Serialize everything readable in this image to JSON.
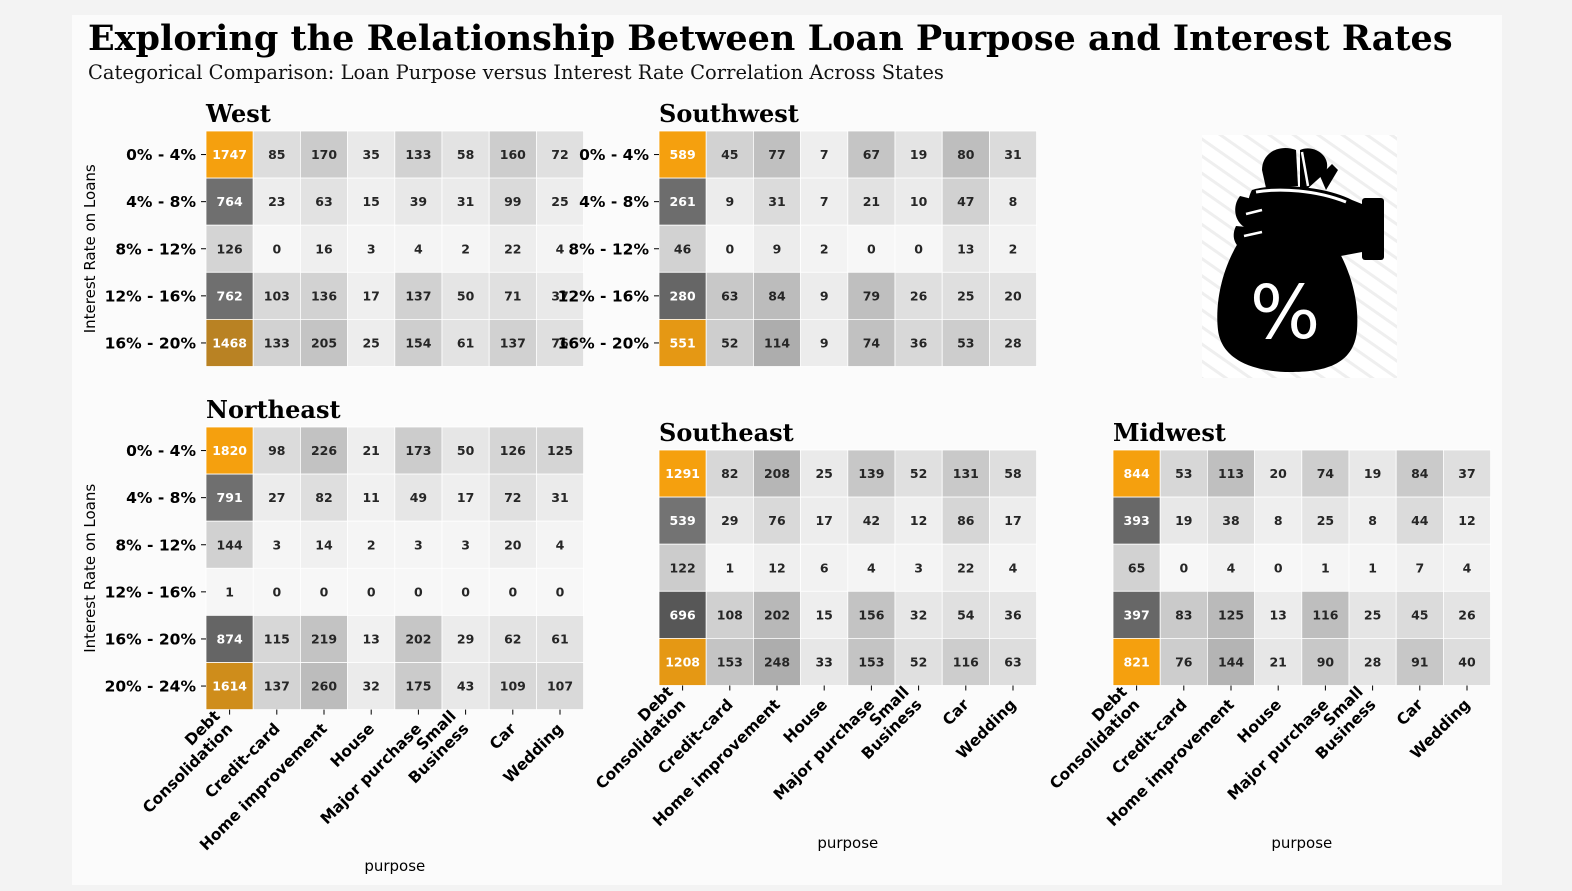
{
  "title": "Exploring the Relationship Between Loan Purpose and Interest Rates",
  "subtitle": "Categorical Comparison: Loan Purpose versus Interest Rate Correlation Across States",
  "colors": {
    "accent": "#f5a00e",
    "dark": "#4a4a4a",
    "light": "#f7f7f7",
    "page": "#f3f3f3",
    "panel": "#fbfbfb"
  },
  "icon": {
    "name": "money-bag-percent-icon",
    "glyph": "%"
  },
  "chart_data": [
    {
      "type": "heatmap",
      "title": "West",
      "ylabel": "Interest Rate on Loans",
      "xlabel": "",
      "categories": [
        "Debt\nConsolidation",
        "Credit-card",
        "Home improvement",
        "House",
        "Major purchase",
        "Small\nBusiness",
        "Car",
        "Wedding"
      ],
      "rows": [
        "0% - 4%",
        "4% - 8%",
        "8% - 12%",
        "12% - 16%",
        "16% - 20%"
      ],
      "values": [
        [
          1747,
          85,
          170,
          35,
          133,
          58,
          160,
          72
        ],
        [
          764,
          23,
          63,
          15,
          39,
          31,
          99,
          25
        ],
        [
          126,
          0,
          16,
          3,
          4,
          2,
          22,
          4
        ],
        [
          762,
          103,
          136,
          17,
          137,
          50,
          71,
          37
        ],
        [
          1468,
          133,
          205,
          25,
          154,
          61,
          137,
          76
        ]
      ]
    },
    {
      "type": "heatmap",
      "title": "Southwest",
      "ylabel": "",
      "xlabel": "",
      "categories": [
        "Debt\nConsolidation",
        "Credit-card",
        "Home improvement",
        "House",
        "Major purchase",
        "Small\nBusiness",
        "Car",
        "Wedding"
      ],
      "rows": [
        "0% - 4%",
        "4% - 8%",
        "8% - 12%",
        "12% - 16%",
        "16% - 20%"
      ],
      "values": [
        [
          589,
          45,
          77,
          7,
          67,
          19,
          80,
          31
        ],
        [
          261,
          9,
          31,
          7,
          21,
          10,
          47,
          8
        ],
        [
          46,
          0,
          9,
          2,
          0,
          0,
          13,
          2
        ],
        [
          280,
          63,
          84,
          9,
          79,
          26,
          25,
          20
        ],
        [
          551,
          52,
          114,
          9,
          74,
          36,
          53,
          28
        ]
      ]
    },
    {
      "type": "heatmap",
      "title": "Northeast",
      "ylabel": "Interest Rate on Loans",
      "xlabel": "purpose",
      "categories": [
        "Debt\nConsolidation",
        "Credit-card",
        "Home improvement",
        "House",
        "Major purchase",
        "Small\nBusiness",
        "Car",
        "Wedding"
      ],
      "rows": [
        "0% - 4%",
        "4% - 8%",
        "8% - 12%",
        "12% - 16%",
        "16% - 20%",
        "20% - 24%"
      ],
      "values": [
        [
          1820,
          98,
          226,
          21,
          173,
          50,
          126,
          125
        ],
        [
          791,
          27,
          82,
          11,
          49,
          17,
          72,
          31
        ],
        [
          144,
          3,
          14,
          2,
          3,
          3,
          20,
          4
        ],
        [
          1,
          0,
          0,
          0,
          0,
          0,
          0,
          0
        ],
        [
          874,
          115,
          219,
          13,
          202,
          29,
          62,
          61
        ],
        [
          1614,
          137,
          260,
          32,
          175,
          43,
          109,
          107
        ]
      ]
    },
    {
      "type": "heatmap",
      "title": "Southeast",
      "ylabel": "",
      "xlabel": "purpose",
      "categories": [
        "Debt\nConsolidation",
        "Credit-card",
        "Home improvement",
        "House",
        "Major purchase",
        "Small\nBusiness",
        "Car",
        "Wedding"
      ],
      "rows": [],
      "values": [
        [
          1291,
          82,
          208,
          25,
          139,
          52,
          131,
          58
        ],
        [
          539,
          29,
          76,
          17,
          42,
          12,
          86,
          17
        ],
        [
          122,
          1,
          12,
          6,
          4,
          3,
          22,
          4
        ],
        [
          696,
          108,
          202,
          15,
          156,
          32,
          54,
          36
        ],
        [
          1208,
          153,
          248,
          33,
          153,
          52,
          116,
          63
        ]
      ]
    },
    {
      "type": "heatmap",
      "title": "Midwest",
      "ylabel": "",
      "xlabel": "purpose",
      "categories": [
        "Debt\nConsolidation",
        "Credit-card",
        "Home improvement",
        "House",
        "Major purchase",
        "Small\nBusiness",
        "Car",
        "Wedding"
      ],
      "rows": [],
      "values": [
        [
          844,
          53,
          113,
          20,
          74,
          19,
          84,
          37
        ],
        [
          393,
          19,
          38,
          8,
          25,
          8,
          44,
          12
        ],
        [
          65,
          0,
          4,
          0,
          1,
          1,
          7,
          4
        ],
        [
          397,
          83,
          125,
          13,
          116,
          25,
          45,
          26
        ],
        [
          821,
          76,
          144,
          21,
          90,
          28,
          91,
          40
        ]
      ]
    }
  ]
}
